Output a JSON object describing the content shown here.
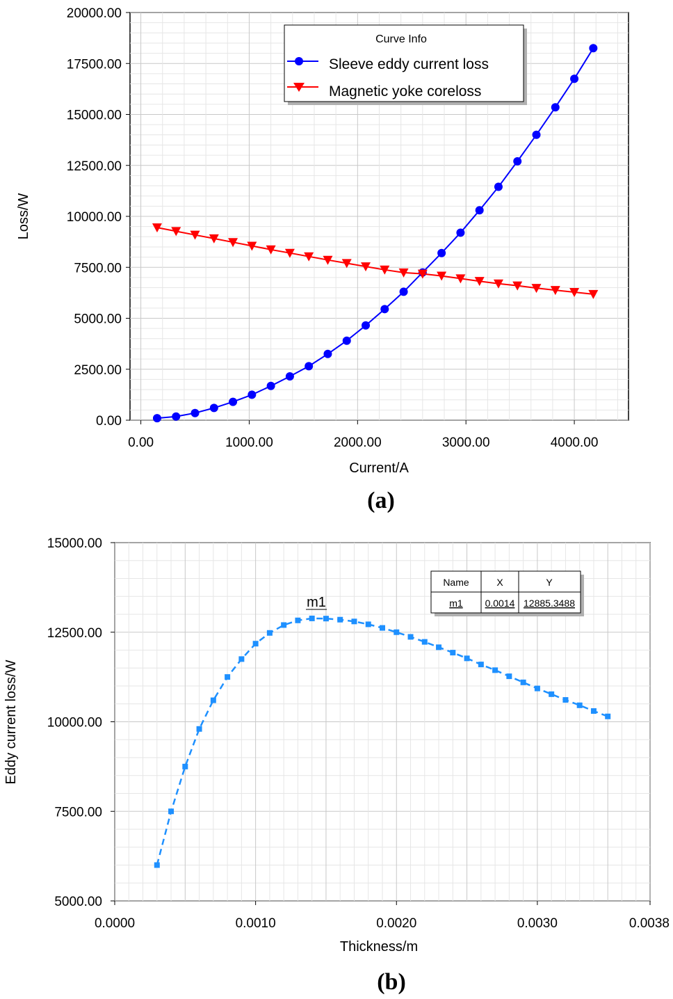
{
  "chart_data": [
    {
      "type": "line",
      "panel_label": "(a)",
      "xlabel": "Current/A",
      "ylabel": "Loss/W",
      "xlim": [
        -100,
        4500
      ],
      "ylim": [
        0,
        20000
      ],
      "xticks": [
        "0.00",
        "1000.00",
        "2000.00",
        "3000.00",
        "4000.00"
      ],
      "yticks": [
        "0.00",
        "2500.00",
        "5000.00",
        "7500.00",
        "10000.00",
        "12500.00",
        "15000.00",
        "17500.00",
        "20000.00"
      ],
      "grid": true,
      "legend": {
        "title": "Curve Info",
        "placement": "top-right"
      },
      "series": [
        {
          "name": "Sleeve eddy current loss",
          "color": "#0000ff",
          "marker": "circle",
          "x": [
            150,
            325,
            500,
            675,
            850,
            1025,
            1200,
            1375,
            1550,
            1725,
            1900,
            2075,
            2250,
            2425,
            2600,
            2775,
            2950,
            3125,
            3300,
            3475,
            3650,
            3825,
            4000,
            4175
          ],
          "y": [
            100,
            180,
            350,
            600,
            900,
            1250,
            1680,
            2150,
            2650,
            3250,
            3900,
            4650,
            5450,
            6300,
            7250,
            8200,
            9200,
            10300,
            11450,
            12700,
            14000,
            15350,
            16750,
            18250
          ]
        },
        {
          "name": "Magnetic yoke coreloss",
          "color": "#ff0000",
          "marker": "triangle-down",
          "x": [
            150,
            325,
            500,
            675,
            850,
            1025,
            1200,
            1375,
            1550,
            1725,
            1900,
            2075,
            2250,
            2425,
            2600,
            2775,
            2950,
            3125,
            3300,
            3475,
            3650,
            3825,
            4000,
            4175
          ],
          "y": [
            9450,
            9270,
            9090,
            8910,
            8730,
            8550,
            8370,
            8200,
            8030,
            7860,
            7700,
            7540,
            7380,
            7240,
            7180,
            7080,
            6950,
            6820,
            6700,
            6600,
            6480,
            6380,
            6280,
            6180
          ]
        }
      ]
    },
    {
      "type": "line",
      "panel_label": "(b)",
      "xlabel": "Thickness/m",
      "ylabel": "Eddy current loss/W",
      "xlim": [
        0.0,
        0.0038
      ],
      "ylim": [
        5000,
        15000
      ],
      "xticks": [
        "0.0000",
        "0.0010",
        "0.0020",
        "0.0030",
        "0.0038"
      ],
      "yticks": [
        "5000.00",
        "7500.00",
        "10000.00",
        "12500.00",
        "15000.00"
      ],
      "grid": true,
      "series": [
        {
          "color": "#1e90ff",
          "marker": "square",
          "line_style": "dashed",
          "x": [
            0.0003,
            0.0004,
            0.0005,
            0.0006,
            0.0007,
            0.0008,
            0.0009,
            0.001,
            0.0011,
            0.0012,
            0.0013,
            0.0014,
            0.0015,
            0.0016,
            0.0017,
            0.0018,
            0.0019,
            0.002,
            0.0021,
            0.0022,
            0.0023,
            0.0024,
            0.0025,
            0.0026,
            0.0027,
            0.0028,
            0.0029,
            0.003,
            0.0031,
            0.0032,
            0.0033,
            0.0034,
            0.0035
          ],
          "y": [
            6000,
            7500,
            8750,
            9800,
            10600,
            11250,
            11750,
            12180,
            12480,
            12700,
            12830,
            12885,
            12880,
            12850,
            12800,
            12720,
            12620,
            12500,
            12370,
            12230,
            12080,
            11930,
            11770,
            11600,
            11440,
            11270,
            11100,
            10930,
            10770,
            10610,
            10460,
            10300,
            10150
          ]
        }
      ],
      "marker_table": {
        "headers": [
          "Name",
          "X",
          "Y"
        ],
        "row": [
          "m1",
          "0.0014",
          "12885.3488"
        ]
      },
      "marker_label": "m1"
    }
  ]
}
